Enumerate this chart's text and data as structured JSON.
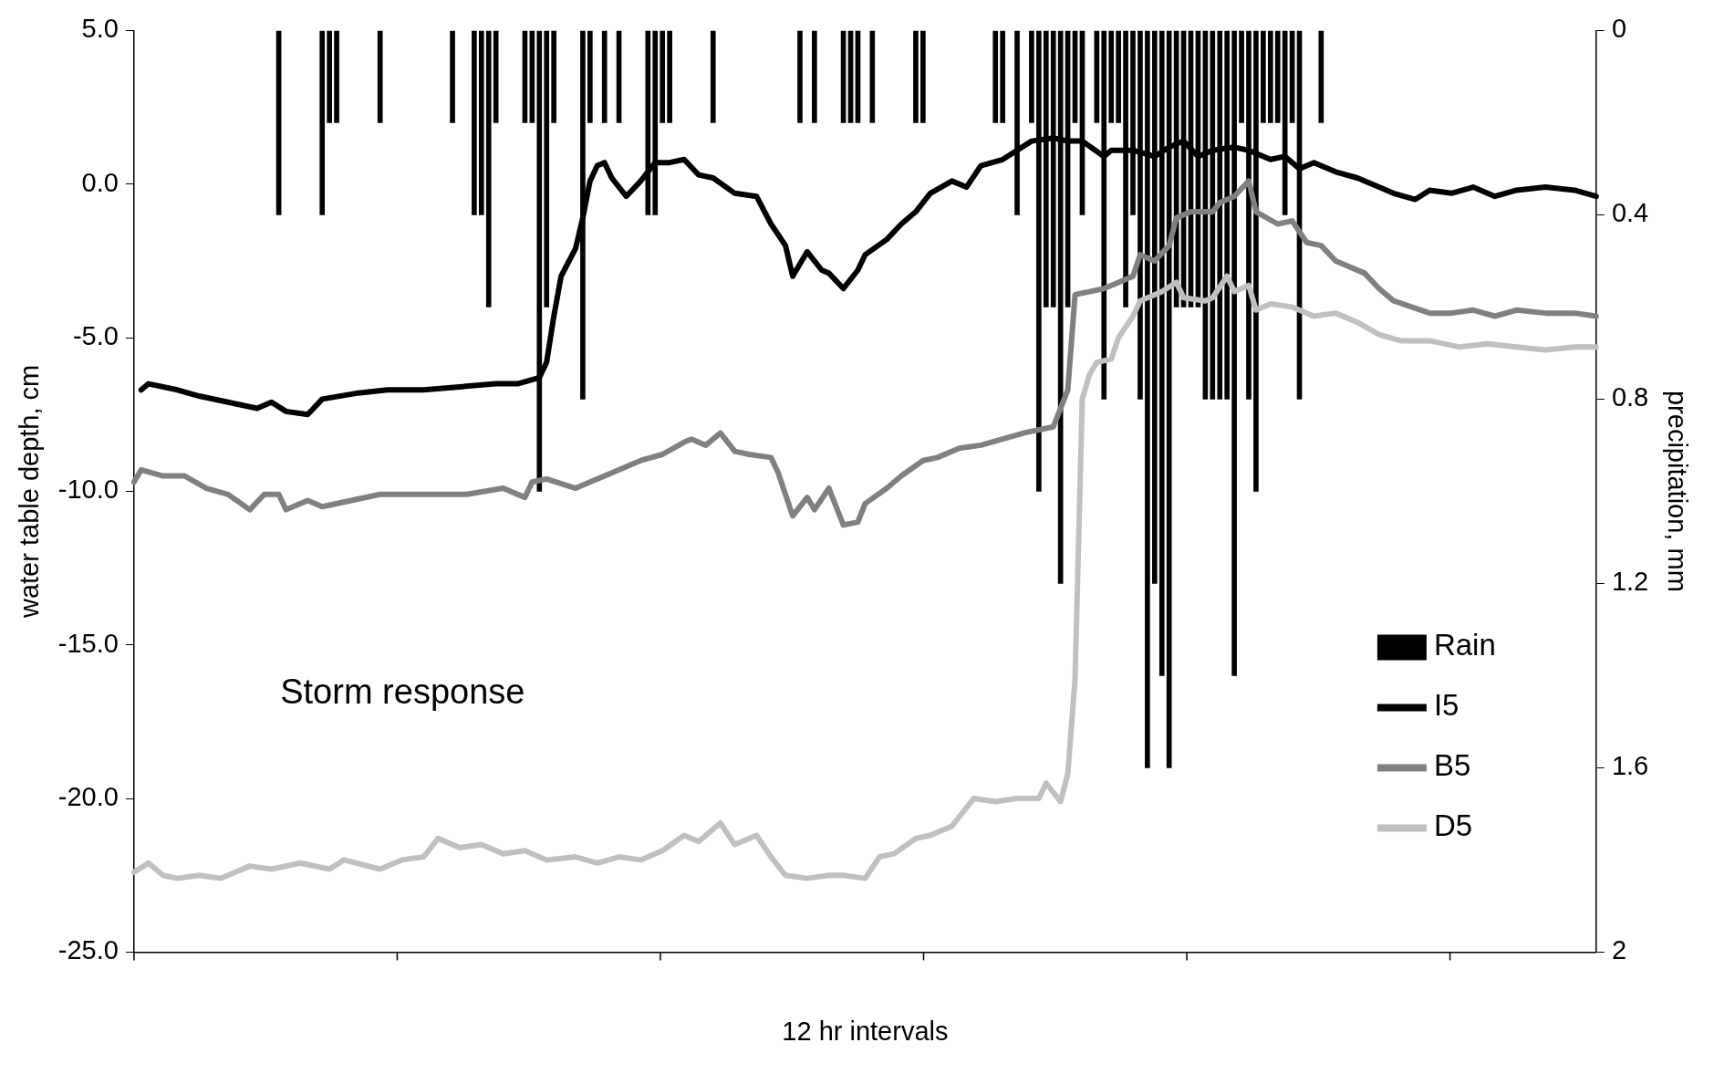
{
  "chart_data": {
    "type": "line",
    "xlabel": "12 hr intervals",
    "ylabel": "water table depth, cm",
    "y2label": "precipitation, mm",
    "annotations": [
      "Storm response"
    ],
    "categories": [
      null,
      null,
      null,
      null,
      null,
      null,
      null,
      null,
      null,
      null,
      null,
      null,
      null,
      null,
      null,
      null,
      null,
      null,
      null,
      null,
      null,
      null,
      null,
      null,
      null,
      null,
      null,
      null,
      null,
      null,
      null,
      null,
      null,
      null,
      null,
      null,
      null,
      null,
      null,
      null,
      null,
      null,
      null,
      null,
      null,
      null,
      null,
      null,
      null,
      null,
      null,
      null,
      null,
      null,
      null,
      null,
      null,
      null,
      null,
      null,
      null,
      null,
      null,
      null,
      null,
      null,
      null,
      null,
      null,
      null,
      null,
      null,
      null,
      null,
      null,
      null,
      null,
      null,
      null,
      null,
      null,
      null,
      null,
      null,
      null,
      null,
      null,
      null,
      null,
      null,
      null,
      null,
      null,
      null,
      null,
      null,
      null,
      null,
      null,
      null,
      null,
      null,
      null,
      null,
      null,
      null,
      null,
      null,
      null,
      null,
      null,
      null,
      null,
      null,
      null,
      null,
      null,
      null,
      null,
      null,
      null,
      null,
      null,
      null,
      null,
      null,
      null,
      null,
      null,
      null,
      null,
      null,
      null,
      null,
      null,
      null,
      null,
      null,
      null,
      null,
      null,
      null,
      null,
      null,
      null,
      null,
      null,
      null,
      null,
      null,
      null,
      null,
      null,
      null,
      null,
      null,
      null,
      null,
      null,
      null,
      null,
      null,
      null,
      null,
      null,
      null,
      null,
      null,
      null,
      null,
      null,
      null,
      null,
      null,
      null,
      null,
      null,
      null,
      null,
      null,
      null,
      null,
      null,
      null,
      null,
      null,
      null,
      null,
      null,
      null,
      null,
      null,
      null,
      null,
      null,
      null,
      null,
      null,
      null,
      null,
      null,
      null,
      null
    ],
    "ylim": [
      -25,
      5
    ],
    "yticks": [
      {
        "value": -25,
        "label": "-25.0"
      },
      {
        "value": -20,
        "label": "-20.0"
      },
      {
        "value": -15,
        "label": "-15.0"
      },
      {
        "value": -10,
        "label": "-10.0"
      },
      {
        "value": -5,
        "label": "-5.0"
      },
      {
        "value": 0,
        "label": "0.0"
      },
      {
        "value": 5,
        "label": "5.0"
      }
    ],
    "y2lim": [
      2,
      0
    ],
    "y2ticks": [
      0,
      0.4,
      0.8,
      1.2,
      1.6,
      2
    ],
    "grid": false,
    "legend": "bottom right",
    "marker": "none",
    "line_style": "solid",
    "series": [
      {
        "name": "Rain",
        "type": "bar",
        "axis": "y2",
        "color": "#000000",
        "values": [
          null,
          null,
          null,
          null,
          null,
          null,
          null,
          null,
          null,
          null,
          null,
          null,
          null,
          null,
          null,
          null,
          null,
          null,
          null,
          null,
          0.4,
          null,
          null,
          null,
          null,
          null,
          0.4,
          0.2,
          0.2,
          null,
          null,
          null,
          null,
          null,
          0.2,
          null,
          null,
          null,
          null,
          null,
          null,
          null,
          null,
          null,
          0.2,
          null,
          null,
          0.4,
          0.4,
          0.6,
          0.2,
          null,
          null,
          null,
          0.2,
          0.2,
          1.0,
          0.6,
          0.2,
          null,
          null,
          null,
          0.8,
          0.2,
          null,
          0.2,
          null,
          0.2,
          null,
          null,
          null,
          0.4,
          0.4,
          0.2,
          0.2,
          null,
          null,
          null,
          null,
          null,
          0.2,
          null,
          null,
          null,
          null,
          null,
          null,
          null,
          null,
          null,
          null,
          null,
          0.2,
          null,
          0.2,
          null,
          null,
          null,
          0.2,
          0.2,
          0.2,
          null,
          0.2,
          null,
          null,
          null,
          null,
          null,
          0.2,
          0.2,
          null,
          null,
          null,
          null,
          null,
          null,
          null,
          null,
          null,
          0.2,
          0.2,
          null,
          0.4,
          null,
          0.2,
          1.0,
          0.6,
          0.6,
          1.2,
          0.6,
          0.2,
          0.4,
          null,
          0.2,
          0.8,
          0.2,
          0.2,
          0.6,
          0.4,
          0.8,
          1.6,
          1.2,
          1.4,
          1.6,
          0.6,
          0.6,
          0.6,
          0.6,
          0.8,
          0.8,
          0.8,
          0.8,
          1.4,
          0.2,
          0.8,
          1.0,
          0.2,
          0.2,
          0.2,
          0.4,
          0.2,
          0.8,
          null,
          null,
          0.2,
          null,
          null,
          null,
          null,
          null,
          null,
          null,
          null,
          null,
          null,
          null,
          null,
          null,
          null,
          null,
          null,
          null,
          null,
          null,
          null,
          null,
          null,
          null,
          null,
          null,
          null,
          null,
          null,
          null,
          null,
          null,
          null,
          null,
          null,
          null,
          null,
          null,
          null
        ]
      },
      {
        "name": "I5",
        "color": "#000000",
        "values": [
          null,
          -6.7,
          -6.5,
          null,
          null,
          null,
          -6.7,
          null,
          null,
          -6.9,
          null,
          null,
          null,
          -7.1,
          null,
          null,
          null,
          -7.3,
          null,
          -7.1,
          null,
          -7.4,
          null,
          null,
          -7.5,
          null,
          -7.0,
          null,
          null,
          null,
          null,
          -6.8,
          null,
          null,
          null,
          -6.7,
          null,
          null,
          null,
          null,
          -6.7,
          null,
          null,
          null,
          null,
          -6.6,
          null,
          null,
          null,
          null,
          -6.5,
          null,
          null,
          -6.5,
          null,
          null,
          -6.3,
          -5.8,
          -4.3,
          -3.0,
          null,
          -2.1,
          -1.1,
          0.1,
          0.6,
          0.7,
          0.2,
          null,
          -0.4,
          null,
          0.1,
          null,
          0.7,
          null,
          0.7,
          null,
          0.8,
          null,
          0.3,
          null,
          0.2,
          null,
          null,
          -0.3,
          null,
          null,
          -0.4,
          null,
          -1.3,
          null,
          -2.0,
          -3.0,
          null,
          -2.2,
          null,
          -2.8,
          -2.9,
          null,
          -3.4,
          null,
          -2.8,
          -2.3,
          null,
          null,
          -1.8,
          null,
          -1.3,
          null,
          -0.9,
          null,
          -0.3,
          null,
          null,
          0.1,
          null,
          -0.1,
          null,
          0.6,
          null,
          null,
          0.8,
          null,
          1.1,
          null,
          1.4,
          null,
          null,
          1.5,
          null,
          1.4,
          null,
          1.4,
          null,
          null,
          0.9,
          1.1,
          null,
          null,
          1.1,
          null,
          null,
          0.9,
          null,
          1.2,
          null,
          1.4,
          null,
          0.9,
          null,
          1.1,
          null,
          null,
          1.2,
          null,
          1.1,
          null,
          null,
          0.8,
          null,
          0.9,
          null,
          0.5,
          null,
          0.7,
          null,
          null,
          0.4,
          null,
          null,
          0.2,
          null,
          null,
          -0.1,
          null,
          -0.3,
          null,
          null,
          -0.5,
          null,
          -0.2,
          null,
          null,
          -0.3,
          null,
          null,
          -0.1,
          null,
          null,
          -0.4,
          null,
          null,
          -0.2,
          null,
          null,
          null,
          -0.1,
          null,
          null,
          null,
          -0.2,
          null,
          null,
          -0.4
        ]
      },
      {
        "name": "B5",
        "color": "#808080",
        "values": [
          -9.7,
          -9.3,
          null,
          null,
          -9.5,
          null,
          null,
          -9.5,
          null,
          null,
          -9.9,
          null,
          null,
          -10.1,
          null,
          null,
          -10.6,
          null,
          -10.1,
          null,
          -10.1,
          -10.6,
          null,
          null,
          -10.3,
          null,
          -10.5,
          null,
          null,
          null,
          -10.3,
          null,
          null,
          null,
          -10.1,
          null,
          null,
          null,
          -10.1,
          null,
          null,
          null,
          -10.1,
          null,
          null,
          null,
          -10.1,
          null,
          null,
          null,
          null,
          -9.9,
          null,
          null,
          -10.2,
          -9.7,
          null,
          -9.6,
          null,
          null,
          null,
          -9.9,
          null,
          -9.7,
          null,
          null,
          -9.4,
          null,
          null,
          null,
          -9.0,
          null,
          null,
          -8.8,
          null,
          null,
          -8.4,
          -8.3,
          null,
          -8.5,
          null,
          -8.1,
          null,
          -8.7,
          null,
          -8.8,
          null,
          null,
          -8.9,
          -9.4,
          null,
          -10.8,
          null,
          -10.2,
          -10.6,
          null,
          -9.9,
          null,
          -11.1,
          null,
          -11.0,
          -10.4,
          null,
          null,
          -9.9,
          null,
          -9.5,
          null,
          null,
          -9.0,
          null,
          -8.9,
          null,
          null,
          -8.6,
          null,
          null,
          -8.5,
          null,
          null,
          -8.3,
          null,
          null,
          -8.1,
          null,
          null,
          null,
          -7.9,
          null,
          -6.7,
          -3.6,
          null,
          -3.5,
          null,
          -3.4,
          null,
          null,
          null,
          -3.0,
          -2.3,
          null,
          -2.5,
          null,
          -2.0,
          -1.1,
          null,
          -0.9,
          null,
          null,
          -0.9,
          -0.6,
          null,
          -0.4,
          null,
          0.1,
          -0.9,
          null,
          null,
          -1.3,
          null,
          -1.2,
          null,
          -1.9,
          null,
          -2.0,
          null,
          -2.5,
          null,
          null,
          null,
          -2.9,
          null,
          -3.4,
          null,
          -3.8,
          null,
          null,
          null,
          null,
          -4.2,
          null,
          null,
          -4.2,
          null,
          null,
          -4.1,
          null,
          null,
          -4.3,
          null,
          null,
          -4.1,
          null,
          null,
          null,
          -4.2,
          null,
          null,
          null,
          -4.2,
          null,
          null,
          -4.3
        ]
      },
      {
        "name": "D5",
        "color": "#c0c0c0",
        "values": [
          -22.4,
          null,
          -22.1,
          null,
          -22.5,
          null,
          -22.6,
          null,
          null,
          -22.5,
          null,
          null,
          -22.6,
          null,
          null,
          null,
          -22.2,
          null,
          null,
          -22.3,
          null,
          null,
          null,
          -22.1,
          null,
          null,
          null,
          -22.3,
          null,
          -22.0,
          null,
          null,
          null,
          null,
          -22.3,
          null,
          null,
          -22.0,
          null,
          null,
          -21.9,
          null,
          -21.3,
          null,
          null,
          -21.6,
          null,
          null,
          -21.5,
          null,
          null,
          -21.8,
          null,
          null,
          -21.7,
          null,
          null,
          -22.0,
          null,
          null,
          null,
          -21.9,
          null,
          null,
          -22.1,
          null,
          null,
          -21.9,
          null,
          null,
          -22.0,
          null,
          null,
          -21.7,
          null,
          null,
          -21.2,
          null,
          -21.4,
          null,
          null,
          -20.8,
          null,
          -21.5,
          null,
          null,
          -21.2,
          null,
          -21.9,
          null,
          -22.5,
          null,
          null,
          -22.6,
          null,
          null,
          -22.5,
          null,
          -22.5,
          null,
          null,
          -22.6,
          null,
          -21.9,
          null,
          -21.8,
          null,
          null,
          -21.3,
          null,
          -21.2,
          null,
          null,
          -20.9,
          -20.6,
          null,
          -20.0,
          null,
          null,
          -20.1,
          null,
          null,
          -20.0,
          null,
          null,
          -20.0,
          -19.5,
          null,
          -20.1,
          -19.2,
          -16.1,
          -7.0,
          -6.2,
          -5.8,
          null,
          -5.7,
          -5.0,
          null,
          -4.3,
          -3.8,
          null,
          -3.6,
          -3.5,
          null,
          -3.2,
          -3.7,
          null,
          null,
          -3.8,
          -3.7,
          null,
          -3.0,
          -3.5,
          null,
          -3.3,
          -4.1,
          null,
          -3.9,
          null,
          null,
          -4.0,
          null,
          null,
          -4.3,
          null,
          null,
          -4.2,
          null,
          null,
          -4.5,
          null,
          null,
          -4.9,
          null,
          null,
          -5.1,
          null,
          null,
          null,
          -5.1,
          null,
          null,
          null,
          -5.3,
          null,
          null,
          null,
          -5.2,
          null,
          null,
          null,
          -5.3,
          null,
          null,
          null,
          -5.4,
          null,
          null,
          null,
          -5.3,
          null,
          null,
          -5.3
        ]
      }
    ]
  }
}
